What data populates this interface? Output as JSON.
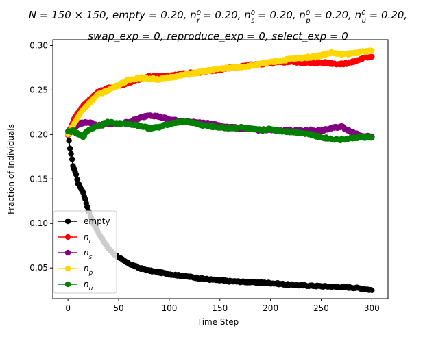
{
  "chart_data": {
    "type": "line",
    "title_line1": "N = 150 × 150, empty = 0.20, n_r^0 = 0.20, n_s^0 = 0.20, n_p^0 = 0.20, n_u^0 = 0.20,",
    "title_line2": "swap_exp = 0, reproduce_exp = 0, select_exp = 0",
    "xlabel": "Time Step",
    "ylabel": "Fraction of Individuals",
    "xlim": [
      -15,
      316
    ],
    "ylim": [
      0.0155,
      0.3065
    ],
    "xticks": [
      0,
      50,
      100,
      150,
      200,
      250,
      300
    ],
    "yticks": [
      0.05,
      0.1,
      0.15,
      0.2,
      0.25,
      0.3
    ],
    "ytick_labels": [
      "0.05",
      "0.10",
      "0.15",
      "0.20",
      "0.25",
      "0.30"
    ],
    "grid": false,
    "legend_position": "lower-left",
    "series": [
      {
        "name": "empty",
        "color": "#000000",
        "keypoints": [
          [
            0,
            0.2
          ],
          [
            2,
            0.185
          ],
          [
            5,
            0.165
          ],
          [
            8,
            0.155
          ],
          [
            10,
            0.145
          ],
          [
            15,
            0.135
          ],
          [
            20,
            0.115
          ],
          [
            25,
            0.1
          ],
          [
            30,
            0.09
          ],
          [
            35,
            0.08
          ],
          [
            40,
            0.072
          ],
          [
            45,
            0.066
          ],
          [
            50,
            0.062
          ],
          [
            55,
            0.058
          ],
          [
            60,
            0.055
          ],
          [
            70,
            0.05
          ],
          [
            80,
            0.047
          ],
          [
            90,
            0.045
          ],
          [
            100,
            0.043
          ],
          [
            120,
            0.04
          ],
          [
            140,
            0.037
          ],
          [
            150,
            0.036
          ],
          [
            160,
            0.035
          ],
          [
            180,
            0.034
          ],
          [
            200,
            0.033
          ],
          [
            220,
            0.031
          ],
          [
            240,
            0.03
          ],
          [
            260,
            0.029
          ],
          [
            280,
            0.028
          ],
          [
            290,
            0.027
          ],
          [
            300,
            0.025
          ]
        ]
      },
      {
        "name": "n_r",
        "color": "#ff0000",
        "keypoints": [
          [
            0,
            0.2
          ],
          [
            5,
            0.215
          ],
          [
            10,
            0.225
          ],
          [
            15,
            0.232
          ],
          [
            20,
            0.238
          ],
          [
            30,
            0.248
          ],
          [
            40,
            0.252
          ],
          [
            50,
            0.255
          ],
          [
            60,
            0.258
          ],
          [
            70,
            0.262
          ],
          [
            80,
            0.265
          ],
          [
            90,
            0.266
          ],
          [
            100,
            0.265
          ],
          [
            110,
            0.268
          ],
          [
            120,
            0.269
          ],
          [
            130,
            0.27
          ],
          [
            140,
            0.271
          ],
          [
            150,
            0.273
          ],
          [
            160,
            0.275
          ],
          [
            170,
            0.276
          ],
          [
            180,
            0.278
          ],
          [
            190,
            0.279
          ],
          [
            200,
            0.28
          ],
          [
            210,
            0.281
          ],
          [
            220,
            0.282
          ],
          [
            230,
            0.281
          ],
          [
            240,
            0.28
          ],
          [
            250,
            0.281
          ],
          [
            260,
            0.28
          ],
          [
            270,
            0.279
          ],
          [
            280,
            0.281
          ],
          [
            290,
            0.285
          ],
          [
            300,
            0.288
          ]
        ]
      },
      {
        "name": "n_s",
        "color": "#800080",
        "keypoints": [
          [
            0,
            0.2
          ],
          [
            5,
            0.205
          ],
          [
            10,
            0.212
          ],
          [
            20,
            0.214
          ],
          [
            30,
            0.21
          ],
          [
            40,
            0.212
          ],
          [
            50,
            0.212
          ],
          [
            60,
            0.214
          ],
          [
            70,
            0.218
          ],
          [
            80,
            0.222
          ],
          [
            90,
            0.22
          ],
          [
            100,
            0.217
          ],
          [
            110,
            0.215
          ],
          [
            120,
            0.214
          ],
          [
            130,
            0.213
          ],
          [
            140,
            0.212
          ],
          [
            150,
            0.21
          ],
          [
            160,
            0.208
          ],
          [
            170,
            0.207
          ],
          [
            180,
            0.206
          ],
          [
            190,
            0.205
          ],
          [
            200,
            0.205
          ],
          [
            210,
            0.204
          ],
          [
            220,
            0.205
          ],
          [
            230,
            0.204
          ],
          [
            240,
            0.205
          ],
          [
            250,
            0.204
          ],
          [
            260,
            0.207
          ],
          [
            270,
            0.209
          ],
          [
            280,
            0.203
          ],
          [
            290,
            0.199
          ],
          [
            300,
            0.197
          ]
        ]
      },
      {
        "name": "n_p",
        "color": "#ffd700",
        "keypoints": [
          [
            0,
            0.2
          ],
          [
            5,
            0.21
          ],
          [
            10,
            0.22
          ],
          [
            15,
            0.228
          ],
          [
            20,
            0.234
          ],
          [
            25,
            0.24
          ],
          [
            30,
            0.245
          ],
          [
            40,
            0.25
          ],
          [
            50,
            0.256
          ],
          [
            60,
            0.261
          ],
          [
            70,
            0.264
          ],
          [
            80,
            0.263
          ],
          [
            90,
            0.262
          ],
          [
            100,
            0.264
          ],
          [
            110,
            0.266
          ],
          [
            120,
            0.268
          ],
          [
            130,
            0.27
          ],
          [
            140,
            0.272
          ],
          [
            150,
            0.274
          ],
          [
            160,
            0.275
          ],
          [
            170,
            0.276
          ],
          [
            180,
            0.277
          ],
          [
            190,
            0.279
          ],
          [
            200,
            0.281
          ],
          [
            210,
            0.283
          ],
          [
            220,
            0.285
          ],
          [
            230,
            0.286
          ],
          [
            240,
            0.287
          ],
          [
            250,
            0.289
          ],
          [
            260,
            0.292
          ],
          [
            270,
            0.29
          ],
          [
            280,
            0.291
          ],
          [
            290,
            0.293
          ],
          [
            300,
            0.294
          ]
        ]
      },
      {
        "name": "n_u",
        "color": "#008000",
        "keypoints": [
          [
            0,
            0.203
          ],
          [
            5,
            0.204
          ],
          [
            10,
            0.2
          ],
          [
            15,
            0.198
          ],
          [
            20,
            0.205
          ],
          [
            30,
            0.21
          ],
          [
            40,
            0.214
          ],
          [
            50,
            0.212
          ],
          [
            60,
            0.212
          ],
          [
            70,
            0.21
          ],
          [
            80,
            0.207
          ],
          [
            90,
            0.208
          ],
          [
            100,
            0.212
          ],
          [
            110,
            0.214
          ],
          [
            120,
            0.214
          ],
          [
            130,
            0.211
          ],
          [
            140,
            0.209
          ],
          [
            150,
            0.208
          ],
          [
            160,
            0.207
          ],
          [
            170,
            0.208
          ],
          [
            180,
            0.206
          ],
          [
            190,
            0.205
          ],
          [
            200,
            0.206
          ],
          [
            210,
            0.204
          ],
          [
            220,
            0.203
          ],
          [
            230,
            0.202
          ],
          [
            240,
            0.2
          ],
          [
            250,
            0.197
          ],
          [
            260,
            0.195
          ],
          [
            270,
            0.194
          ],
          [
            280,
            0.196
          ],
          [
            290,
            0.197
          ],
          [
            300,
            0.197
          ]
        ]
      }
    ]
  }
}
